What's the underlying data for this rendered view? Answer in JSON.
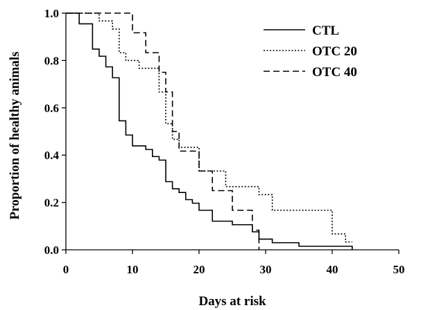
{
  "chart_data": {
    "type": "line",
    "step": true,
    "title": "",
    "xlabel": "Days at risk",
    "ylabel": "Proportion of healthy animals",
    "xlim": [
      0,
      50
    ],
    "ylim": [
      0,
      1.0
    ],
    "xticks": [
      "0",
      "10",
      "20",
      "30",
      "40",
      "50"
    ],
    "yticks": [
      "0.0",
      "0.2",
      "0.4",
      "0.6",
      "0.8",
      "1.0"
    ],
    "grid": false,
    "legend_position": "top-right",
    "series": [
      {
        "name": "CTL",
        "style": "solid",
        "x": [
          0,
          2,
          4,
          5,
          6,
          7,
          8,
          9,
          10,
          12,
          13,
          14,
          15,
          16,
          17,
          18,
          19,
          20,
          22,
          25,
          28,
          29,
          30,
          31,
          35,
          43
        ],
        "y": [
          1.0,
          0.955,
          0.848,
          0.818,
          0.773,
          0.727,
          0.545,
          0.485,
          0.439,
          0.424,
          0.394,
          0.379,
          0.288,
          0.258,
          0.242,
          0.212,
          0.197,
          0.167,
          0.121,
          0.106,
          0.076,
          0.045,
          0.045,
          0.03,
          0.015,
          0.0
        ]
      },
      {
        "name": "OTC 20",
        "style": "dotted",
        "x": [
          0,
          5,
          7,
          8,
          9,
          11,
          14,
          15,
          16,
          17,
          20,
          24,
          29,
          31,
          38,
          40,
          42,
          43
        ],
        "y": [
          1.0,
          0.967,
          0.933,
          0.833,
          0.8,
          0.767,
          0.667,
          0.533,
          0.467,
          0.433,
          0.333,
          0.267,
          0.233,
          0.167,
          0.167,
          0.067,
          0.033,
          0.033
        ]
      },
      {
        "name": "OTC 40",
        "style": "dashed",
        "x": [
          0,
          8,
          10,
          12,
          14,
          15,
          16,
          17,
          20,
          22,
          25,
          28,
          29,
          29
        ],
        "y": [
          1.0,
          1.0,
          0.917,
          0.833,
          0.75,
          0.667,
          0.5,
          0.417,
          0.333,
          0.25,
          0.167,
          0.083,
          0.083,
          0.0
        ]
      }
    ]
  }
}
